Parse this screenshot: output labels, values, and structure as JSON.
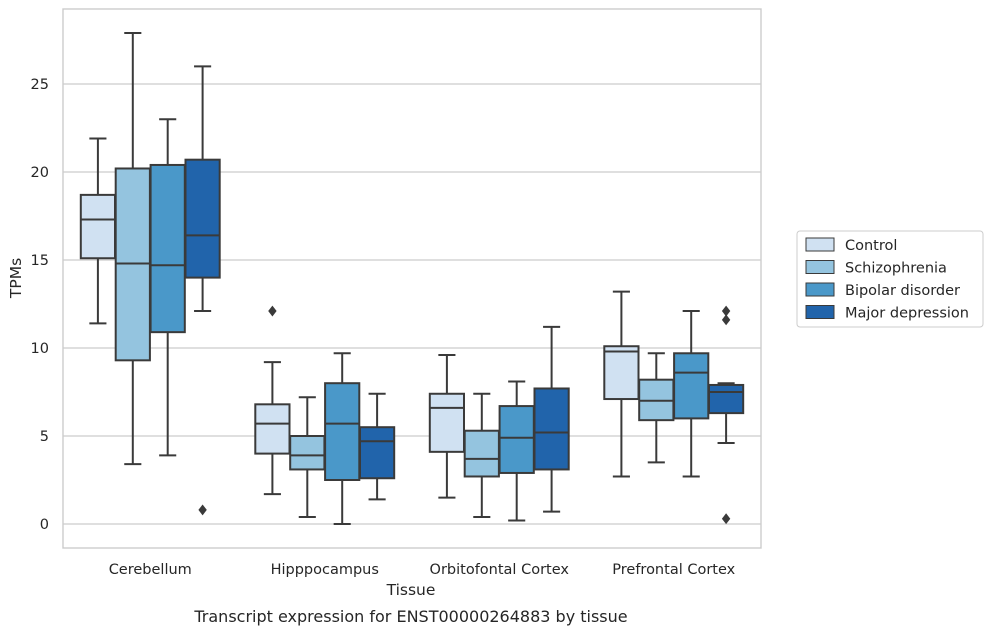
{
  "chart_data": {
    "type": "box",
    "title": "",
    "caption": "Transcript expression for ENST00000264883 by tissue",
    "xlabel": "Tissue",
    "ylabel": "TPMs",
    "ylim": [
      -1.3,
      29.0
    ],
    "yticks": [
      0,
      5,
      10,
      15,
      20,
      25
    ],
    "grid": "horizontal",
    "legend_position": "right",
    "categories": [
      "Cerebellum",
      "Hipppocampus",
      "Orbitofontal Cortex",
      "Prefrontal Cortex"
    ],
    "series": [
      {
        "name": "Control",
        "color": "#d0e1f2",
        "boxes": [
          {
            "whisker_low": 11.4,
            "q1": 15.1,
            "median": 17.3,
            "q3": 18.7,
            "whisker_high": 21.9,
            "outliers": []
          },
          {
            "whisker_low": 1.7,
            "q1": 4.0,
            "median": 5.7,
            "q3": 6.8,
            "whisker_high": 9.2,
            "outliers": [
              12.1
            ]
          },
          {
            "whisker_low": 1.5,
            "q1": 4.1,
            "median": 6.6,
            "q3": 7.4,
            "whisker_high": 9.6,
            "outliers": []
          },
          {
            "whisker_low": 2.7,
            "q1": 7.1,
            "median": 9.8,
            "q3": 10.1,
            "whisker_high": 13.2,
            "outliers": []
          }
        ]
      },
      {
        "name": "Schizophrenia",
        "color": "#94c4df",
        "boxes": [
          {
            "whisker_low": 3.4,
            "q1": 9.3,
            "median": 14.8,
            "q3": 20.2,
            "whisker_high": 27.9,
            "outliers": []
          },
          {
            "whisker_low": 0.4,
            "q1": 3.1,
            "median": 3.9,
            "q3": 5.0,
            "whisker_high": 7.2,
            "outliers": []
          },
          {
            "whisker_low": 0.4,
            "q1": 2.7,
            "median": 3.7,
            "q3": 5.3,
            "whisker_high": 7.4,
            "outliers": []
          },
          {
            "whisker_low": 3.5,
            "q1": 5.9,
            "median": 7.0,
            "q3": 8.2,
            "whisker_high": 9.7,
            "outliers": []
          }
        ]
      },
      {
        "name": "Bipolar disorder",
        "color": "#4a98c9",
        "boxes": [
          {
            "whisker_low": 3.9,
            "q1": 10.9,
            "median": 14.7,
            "q3": 20.4,
            "whisker_high": 23.0,
            "outliers": []
          },
          {
            "whisker_low": 0.0,
            "q1": 2.5,
            "median": 5.7,
            "q3": 8.0,
            "whisker_high": 9.7,
            "outliers": []
          },
          {
            "whisker_low": 0.2,
            "q1": 2.9,
            "median": 4.9,
            "q3": 6.7,
            "whisker_high": 8.1,
            "outliers": []
          },
          {
            "whisker_low": 2.7,
            "q1": 6.0,
            "median": 8.6,
            "q3": 9.7,
            "whisker_high": 12.1,
            "outliers": []
          }
        ]
      },
      {
        "name": "Major depression",
        "color": "#2164ab",
        "boxes": [
          {
            "whisker_low": 12.1,
            "q1": 14.0,
            "median": 16.4,
            "q3": 20.7,
            "whisker_high": 26.0,
            "outliers": [
              0.8
            ]
          },
          {
            "whisker_low": 1.4,
            "q1": 2.6,
            "median": 4.7,
            "q3": 5.5,
            "whisker_high": 7.4,
            "outliers": []
          },
          {
            "whisker_low": 0.7,
            "q1": 3.1,
            "median": 5.2,
            "q3": 7.7,
            "whisker_high": 11.2,
            "outliers": []
          },
          {
            "whisker_low": 4.6,
            "q1": 6.3,
            "median": 7.5,
            "q3": 7.9,
            "whisker_high": 8.0,
            "outliers": [
              12.1,
              11.6,
              0.3
            ]
          }
        ]
      }
    ]
  }
}
